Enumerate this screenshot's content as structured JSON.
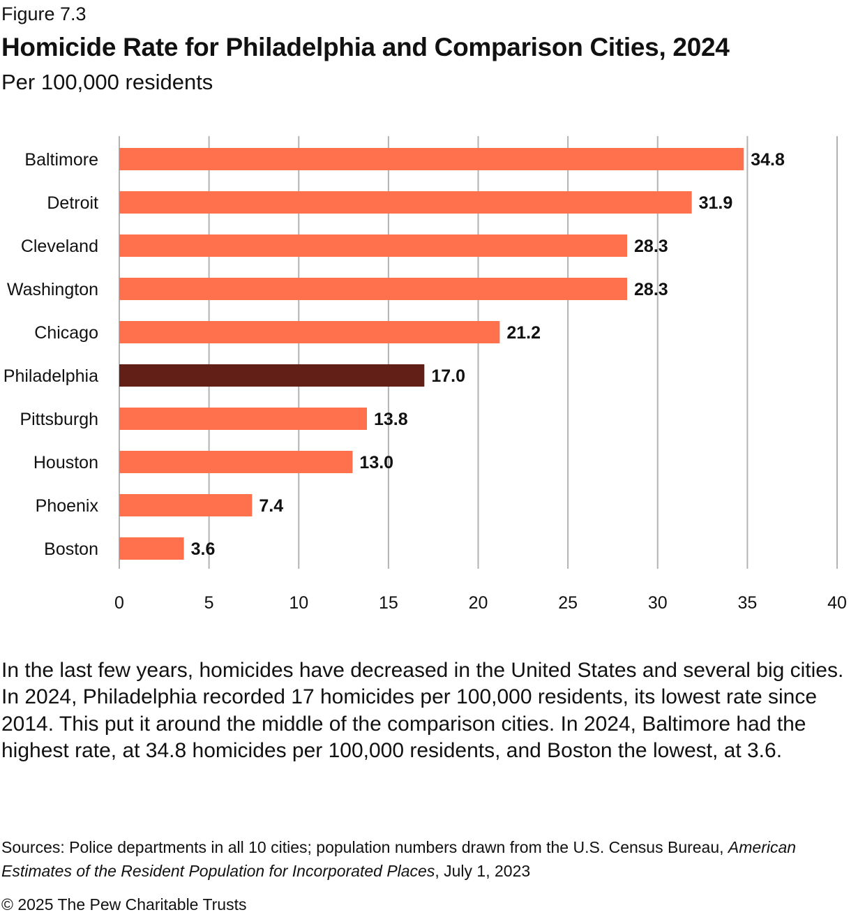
{
  "figure_label": "Figure 7.3",
  "caption": "In the last few years, homicides have decreased in the United States and several big cities. In 2024, Philadelphia recorded 17 homicides per 100,000 residents, its lowest rate since 2014. This put it around the middle of the comparison cities. In 2024, Baltimore had the highest rate, at 34.8 homicides per 100,000 residents, and Boston the lowest, at 3.6.",
  "sources": {
    "prefix": "Sources: Police departments in all 10 cities; population numbers drawn from the U.S. Census Bureau, ",
    "title_italic": "American Estimates of the Resident Population for Incorporated Places",
    "suffix": ", July 1, 2023"
  },
  "copyright": "© 2025 The Pew Charitable Trusts",
  "chart_data": {
    "type": "bar",
    "orientation": "horizontal",
    "title": "Homicide Rate for Philadelphia and Comparison Cities, 2024",
    "subtitle": "Per 100,000 residents",
    "categories": [
      "Baltimore",
      "Detroit",
      "Cleveland",
      "Washington",
      "Chicago",
      "Philadelphia",
      "Pittsburgh",
      "Houston",
      "Phoenix",
      "Boston"
    ],
    "values": [
      34.8,
      31.9,
      28.3,
      28.3,
      21.2,
      17.0,
      13.8,
      13.0,
      7.4,
      3.6
    ],
    "value_labels": [
      "34.8",
      "31.9",
      "28.3",
      "28.3",
      "21.2",
      "17.0",
      "13.8",
      "13.0",
      "7.4",
      "3.6"
    ],
    "highlight": "Philadelphia",
    "colors": {
      "bar": "#FF704D",
      "highlight": "#621F17",
      "grid": "#B3B3B3"
    },
    "xlim": [
      0,
      40
    ],
    "xticks": [
      0,
      5,
      10,
      15,
      20,
      25,
      30,
      35,
      40
    ],
    "grid": true,
    "legend": false
  }
}
